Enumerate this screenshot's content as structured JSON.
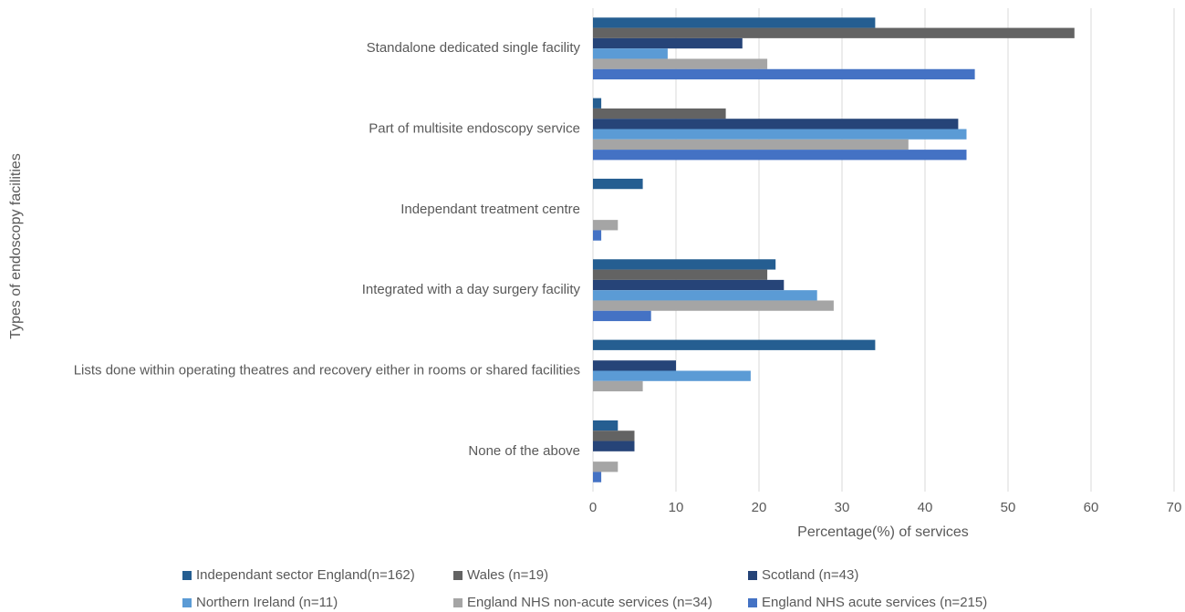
{
  "chart_data": {
    "type": "hbar",
    "xlabel": "Percentage(%) of services",
    "ylabel": "Types of endoscopy facilities",
    "categories": [
      "Standalone dedicated single facility",
      "Part of multisite endoscopy service",
      "Independant treatment centre",
      "Integrated with a day surgery facility",
      "Lists done within operating theatres and recovery either in rooms or shared facilities",
      "None of the above"
    ],
    "series": [
      {
        "name": "Independant sector England(n=162)",
        "color": "#255e91",
        "values": [
          34,
          1,
          6,
          22,
          34,
          3
        ]
      },
      {
        "name": "Wales (n=19)",
        "color": "#636363",
        "values": [
          58,
          16,
          0,
          21,
          0,
          5
        ]
      },
      {
        "name": "Scotland (n=43)",
        "color": "#264478",
        "values": [
          18,
          44,
          0,
          23,
          10,
          5
        ]
      },
      {
        "name": "Northern Ireland (n=11)",
        "color": "#5b9bd5",
        "values": [
          9,
          45,
          0,
          27,
          19,
          0
        ]
      },
      {
        "name": "England NHS non-acute services (n=34)",
        "color": "#a5a5a5",
        "values": [
          21,
          38,
          3,
          29,
          6,
          3
        ]
      },
      {
        "name": "England NHS acute services (n=215)",
        "color": "#4472c4",
        "values": [
          46,
          45,
          1,
          7,
          0,
          1
        ]
      }
    ],
    "xlim": [
      0,
      70
    ],
    "xticks": [
      0,
      10,
      20,
      30,
      40,
      50,
      60,
      70
    ],
    "grid": true,
    "legend": "bottom"
  }
}
